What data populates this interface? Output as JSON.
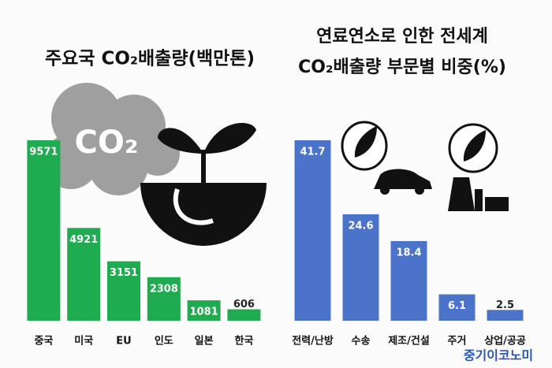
{
  "chart_data": [
    {
      "type": "bar",
      "title": "주요국 CO₂배출량(백만톤)",
      "annotations": [
        "CO₂"
      ],
      "categories": [
        "중국",
        "미국",
        "EU",
        "인도",
        "일본",
        "한국"
      ],
      "values": [
        9571,
        4921,
        3151,
        2308,
        1081,
        606
      ],
      "color": "#1fab4f"
    },
    {
      "type": "bar",
      "title": [
        "연료연소로 인한 전세계",
        "CO₂배출량 부문별 비중(%)"
      ],
      "categories": [
        "전력/난방",
        "수송",
        "제조/건설",
        "주거",
        "상업/공공"
      ],
      "values": [
        41.7,
        24.6,
        18.4,
        6.1,
        2.5
      ],
      "color": "#4a73c9"
    }
  ],
  "watermark": "중기이코노미"
}
